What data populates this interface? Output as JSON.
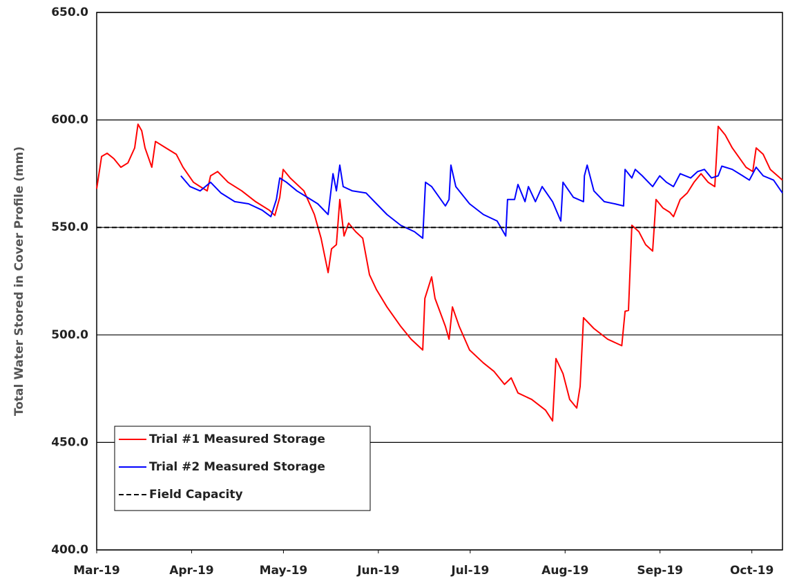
{
  "chart_data": {
    "type": "line",
    "y_label": "Total Water Stored in Cover Profile (mm)",
    "xlim": [
      0,
      224
    ],
    "xticks": [
      {
        "value": 0,
        "label": "Mar-19"
      },
      {
        "value": 31,
        "label": "Apr-19"
      },
      {
        "value": 61,
        "label": "May-19"
      },
      {
        "value": 92,
        "label": "Jun-19"
      },
      {
        "value": 122,
        "label": "Jul-19"
      },
      {
        "value": 153,
        "label": "Aug-19"
      },
      {
        "value": 184,
        "label": "Sep-19"
      },
      {
        "value": 214,
        "label": "Oct-19"
      }
    ],
    "ylim": [
      400,
      650
    ],
    "yticks": [
      {
        "value": 400,
        "label": "400.0"
      },
      {
        "value": 450,
        "label": "450.0"
      },
      {
        "value": 500,
        "label": "500.0"
      },
      {
        "value": 550,
        "label": "550.0"
      },
      {
        "value": 600,
        "label": "600.0"
      },
      {
        "value": 650,
        "label": "650.0"
      }
    ],
    "grid": true,
    "legend": "lower left",
    "series": [
      {
        "name": "Trial #1 Measured Storage",
        "color": "#ff0000",
        "dash": "solid",
        "x": [
          0,
          1.6,
          3.4,
          5.6,
          7.9,
          10.2,
          12.4,
          13.5,
          14.7,
          15.8,
          18,
          19.2,
          22.6,
          26,
          28.2,
          31.6,
          33.8,
          36.1,
          37.2,
          39.5,
          42.9,
          47.4,
          51.9,
          56.4,
          58.2,
          59.8,
          60.9,
          63.2,
          67.7,
          71.1,
          73.3,
          75.6,
          76.7,
          78.3,
          79.4,
          80.8,
          82.3,
          84.6,
          86.9,
          89.1,
          91.4,
          94.8,
          99.3,
          102.7,
          106.5,
          107.2,
          109.4,
          110.5,
          113.9,
          115.1,
          116.2,
          118.4,
          121.8,
          126.3,
          129.8,
          133.2,
          135.4,
          137.6,
          142.1,
          146.6,
          148.9,
          150,
          152.3,
          154.5,
          156.8,
          157.9,
          159,
          162.4,
          166.9,
          171.5,
          172.6,
          173.7,
          174.8,
          177.1,
          179.3,
          181.6,
          182.7,
          185,
          187.2,
          188.4,
          190.6,
          192.9,
          195.1,
          197.4,
          199.7,
          201.9,
          203,
          205.3,
          207.6,
          212.1,
          214.3,
          215.4,
          217.7,
          220,
          224
        ],
        "values": [
          568,
          583,
          584.5,
          582,
          578,
          580,
          587,
          598,
          595,
          587,
          578,
          590,
          587,
          584,
          578,
          571,
          569,
          567,
          574,
          576,
          571,
          567,
          562,
          558,
          555.6,
          564,
          577,
          573,
          567,
          556,
          545,
          529,
          540,
          542,
          563,
          546,
          552,
          548,
          545,
          528,
          521,
          513,
          504,
          498,
          493,
          517,
          527,
          517,
          504,
          498,
          513,
          504,
          493,
          487,
          483,
          477,
          480,
          473,
          470,
          465,
          460,
          489,
          482,
          470,
          466,
          476,
          508,
          503,
          498,
          495,
          511,
          511.4,
          551,
          548,
          542,
          539,
          563,
          559,
          557,
          555,
          563,
          566,
          571,
          575,
          571,
          569,
          597,
          593,
          587,
          578,
          576,
          587,
          584,
          577,
          572
        ]
      },
      {
        "name": "Trial #2 Measured Storage",
        "color": "#0000ff",
        "dash": "solid",
        "x": [
          27.5,
          30.5,
          33.8,
          37.2,
          40.6,
          45.1,
          49.6,
          54.1,
          56.9,
          58.7,
          59.8,
          62,
          65.4,
          68.8,
          72.2,
          75.6,
          77.2,
          78.3,
          79.4,
          80.5,
          83.5,
          88,
          91.4,
          94.8,
          99.3,
          103.8,
          106.5,
          107.4,
          109.4,
          113.9,
          115.1,
          115.7,
          117.3,
          121.8,
          126.3,
          130.8,
          133.6,
          134.2,
          136.5,
          137.6,
          139.9,
          141,
          143.3,
          145.5,
          148.9,
          151.6,
          152.3,
          155.7,
          159,
          159.3,
          160.2,
          162.4,
          165.8,
          169.2,
          172.1,
          172.6,
          174.8,
          175.9,
          178.2,
          181.6,
          183.9,
          186.1,
          188.4,
          190.6,
          194,
          196.3,
          198.5,
          200.8,
          203,
          204.2,
          207.6,
          211,
          213.2,
          215.4,
          217.7,
          221.1,
          224
        ],
        "values": [
          574,
          569,
          567,
          571,
          566,
          562,
          561,
          558,
          555,
          563,
          573,
          571,
          567,
          564,
          561,
          556,
          575,
          567,
          579,
          569,
          567,
          566,
          561,
          556,
          551,
          548,
          545,
          571,
          569,
          560,
          563,
          579,
          569,
          561,
          556,
          553,
          546,
          563,
          563,
          570,
          562,
          569,
          562,
          569,
          562,
          553,
          571,
          564,
          562,
          574,
          579,
          567,
          562,
          561,
          560,
          577,
          573,
          577,
          574,
          569,
          574,
          571,
          569,
          575,
          573,
          576,
          577,
          573,
          574,
          578.5,
          577,
          574,
          572,
          578,
          574,
          572,
          566
        ]
      },
      {
        "name": "Field Capacity",
        "color": "#000000",
        "dash": "dashed",
        "x": [
          0,
          224
        ],
        "values": [
          550,
          550
        ]
      }
    ]
  }
}
